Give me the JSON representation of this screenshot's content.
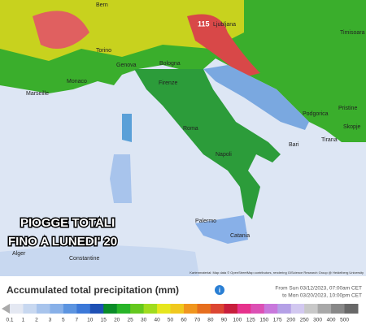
{
  "map": {
    "cities": [
      "Bern",
      "Ljubljana",
      "Timisoara",
      "Torino",
      "Genova",
      "Bologna",
      "Monaco",
      "Marseille",
      "Firenze",
      "Roma",
      "Napoli",
      "Bari",
      "Podgorica",
      "Pristine",
      "Skopje",
      "Tirana",
      "Palermo",
      "Catania",
      "Alger",
      "Constantine"
    ],
    "max_label": "115",
    "overlay": [
      "PIOGGE TOTALI",
      "FINO A LUNEDI' 20"
    ],
    "attribution": "Kartenmaterial: Map data © OpenStreetMap contributors, rendering GIScience Research Group @ Heidelberg University"
  },
  "legend": {
    "title": "Accumulated total precipitation (mm)",
    "period": [
      "From Sun 03/12/2023, 07:00am CET",
      "to Mon 03/20/2023, 10:00pm CET"
    ],
    "levels": [
      0.1,
      1,
      2,
      3,
      5,
      7,
      10,
      15,
      20,
      25,
      30,
      40,
      50,
      60,
      70,
      80,
      90,
      100,
      125,
      150,
      175,
      200,
      250,
      300,
      400,
      500
    ],
    "colors": [
      "#e4e8f2",
      "#c8d8f0",
      "#a8c4ec",
      "#88b0e8",
      "#5c94e0",
      "#3c78d8",
      "#1e50b4",
      "#0a8c28",
      "#28b428",
      "#64c81e",
      "#a0dc1e",
      "#e6e61e",
      "#f0c81e",
      "#f0961e",
      "#e66e1e",
      "#dc4632",
      "#c81e3c",
      "#e6328c",
      "#dc50b4",
      "#c878dc",
      "#b4a0e6",
      "#d2c8f0",
      "#c8c8c8",
      "#a8a8a8",
      "#888888",
      "#686868"
    ]
  }
}
